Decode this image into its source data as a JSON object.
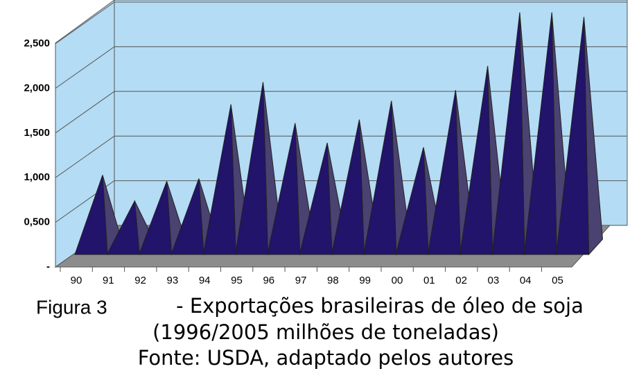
{
  "chart_data": {
    "type": "pyramid3d",
    "categories": [
      "90",
      "91",
      "92",
      "93",
      "94",
      "95",
      "96",
      "97",
      "98",
      "99",
      "00",
      "01",
      "02",
      "03",
      "04",
      "05"
    ],
    "values": [
      0.89,
      0.6,
      0.82,
      0.85,
      1.68,
      1.93,
      1.47,
      1.25,
      1.51,
      1.72,
      1.2,
      1.84,
      2.11,
      2.71,
      2.71,
      2.66
    ],
    "color": "#22136b",
    "ylim": [
      0,
      2.5
    ],
    "yticks": [
      {
        "value": 0,
        "label": "-"
      },
      {
        "value": 0.5,
        "label": "0,500"
      },
      {
        "value": 1,
        "label": "1,000"
      },
      {
        "value": 1.5,
        "label": "1,500"
      },
      {
        "value": 2,
        "label": "2,000"
      },
      {
        "value": 2.5,
        "label": "2,500"
      }
    ],
    "grid": true,
    "caption": {
      "figure": "Figura 3",
      "line1": "- Exportações brasileiras de óleo de soja",
      "line2": "(1996/2005  milhões de toneladas)",
      "line3": "Fonte: USDA, adaptado pelos autores"
    }
  }
}
